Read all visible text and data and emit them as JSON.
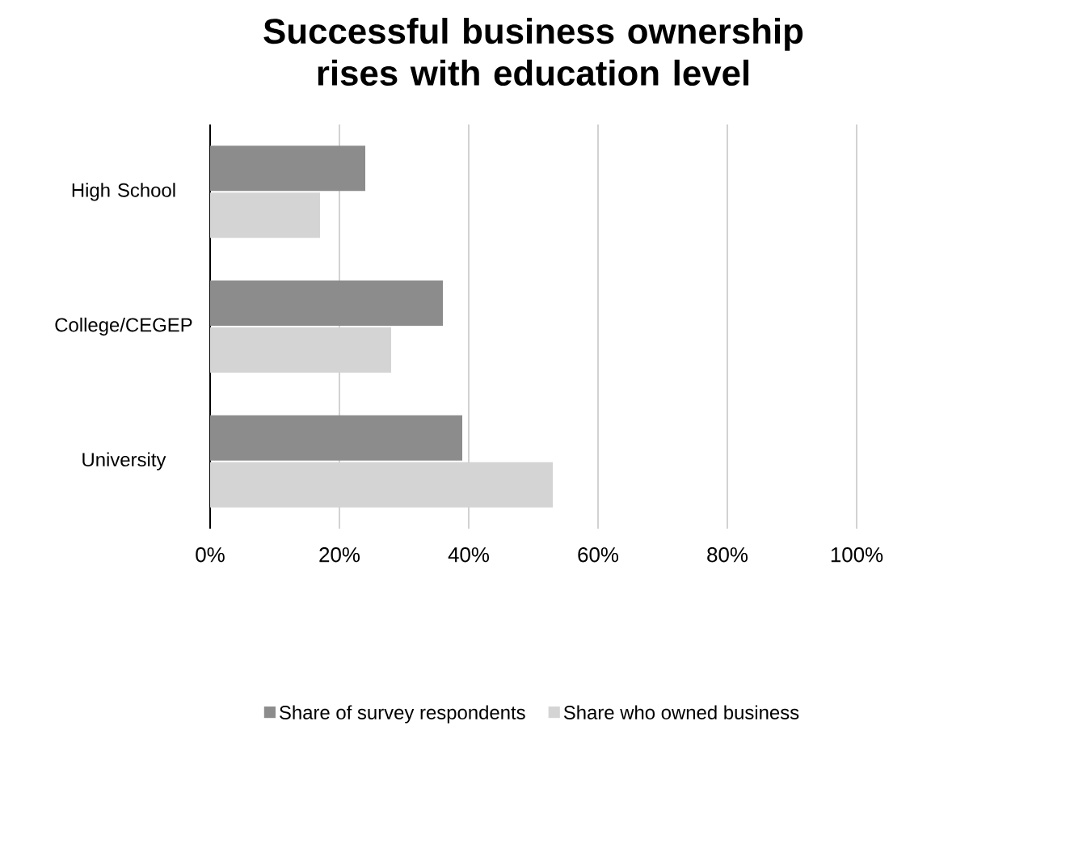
{
  "chart_data": {
    "type": "bar",
    "orientation": "horizontal",
    "title": "Successful business ownership rises with education level",
    "categories": [
      "High School",
      "College/CEGEP",
      "University"
    ],
    "series": [
      {
        "name": "Share of survey respondents",
        "color": "#8c8c8c",
        "values": [
          24,
          36,
          39
        ]
      },
      {
        "name": "Share who owned business",
        "color": "#d4d4d4",
        "values": [
          17,
          28,
          53
        ]
      }
    ],
    "xlim": [
      0,
      100
    ],
    "xticks": [
      {
        "value": 0,
        "label": "0%"
      },
      {
        "value": 20,
        "label": "20%"
      },
      {
        "value": 40,
        "label": "40%"
      },
      {
        "value": 60,
        "label": "60%"
      },
      {
        "value": 80,
        "label": "80%"
      },
      {
        "value": 100,
        "label": "100%"
      }
    ],
    "grid": "x",
    "legend": "bottom"
  }
}
